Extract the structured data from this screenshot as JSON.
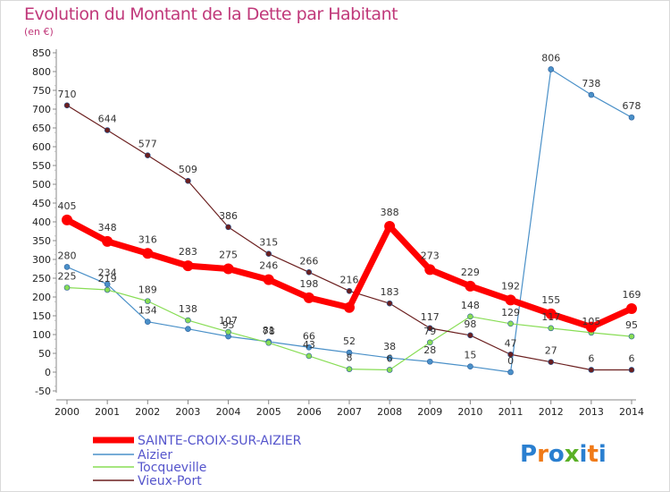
{
  "title": "Evolution du Montant de la Dette par Habitant",
  "subtitle": "(en €)",
  "logo": {
    "text": "Proxiti",
    "letters": [
      "P",
      "r",
      "o",
      "x",
      "i",
      "t",
      "i"
    ],
    "colors": [
      "#2a7fd0",
      "#f07a18",
      "#2a7fd0",
      "#5ab026",
      "#2a7fd0",
      "#f07a18",
      "#2a7fd0"
    ]
  },
  "chart_data": {
    "type": "line",
    "categories": [
      "2000",
      "2001",
      "2002",
      "2003",
      "2004",
      "2005",
      "2006",
      "2007",
      "2008",
      "2009",
      "2010",
      "2011",
      "2012",
      "2013",
      "2014"
    ],
    "ylim": [
      -50,
      850
    ],
    "yticks": [
      "-50",
      "0",
      "50",
      "100",
      "150",
      "200",
      "250",
      "300",
      "350",
      "400",
      "450",
      "500",
      "550",
      "600",
      "650",
      "700",
      "750",
      "800",
      "850"
    ],
    "grid": false,
    "legend_position": "bottom-left",
    "series": [
      {
        "name": "SAINTE-CROIX-SUR-AIZIER",
        "color": "#ff0000",
        "width": 7,
        "values": [
          405,
          348,
          316,
          283,
          275,
          246,
          198,
          172,
          388,
          273,
          229,
          192,
          155,
          120,
          169
        ],
        "labels": [
          "405",
          "348",
          "316",
          "283",
          "275",
          "246",
          "198",
          "",
          "388",
          "273",
          "229",
          "192",
          "155",
          "",
          "169"
        ]
      },
      {
        "name": "Aizier",
        "color": "#4a90c8",
        "width": 1.2,
        "values": [
          280,
          234,
          134,
          115,
          95,
          81,
          66,
          52,
          38,
          28,
          15,
          0,
          806,
          738,
          678
        ],
        "labels": [
          "280",
          "234",
          "134",
          "",
          "95",
          "81",
          "66",
          "52",
          "38",
          "28",
          "15",
          "0",
          "806",
          "738",
          "678"
        ]
      },
      {
        "name": "Tocqueville",
        "color": "#88dd55",
        "width": 1.2,
        "values": [
          225,
          219,
          189,
          138,
          107,
          78,
          43,
          8,
          6,
          79,
          148,
          129,
          117,
          105,
          95
        ],
        "labels": [
          "225",
          "219",
          "189",
          "138",
          "107",
          "78",
          "43",
          "8",
          "6",
          "79",
          "148",
          "129",
          "117",
          "105",
          "95"
        ]
      },
      {
        "name": "Vieux-Port",
        "color": "#6b1f1f",
        "width": 1.2,
        "values": [
          710,
          644,
          577,
          509,
          386,
          315,
          266,
          216,
          183,
          117,
          98,
          47,
          27,
          6,
          6
        ],
        "labels": [
          "710",
          "644",
          "577",
          "509",
          "386",
          "315",
          "266",
          "216",
          "183",
          "117",
          "98",
          "47",
          "27",
          "6",
          "6"
        ]
      }
    ]
  }
}
